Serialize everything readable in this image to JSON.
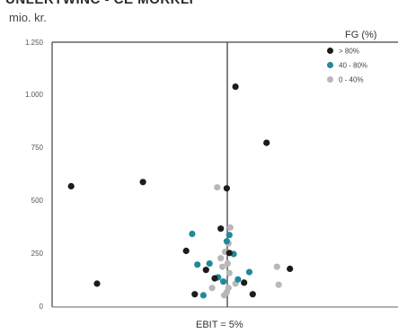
{
  "header": {
    "title_fragment": "UNLERTWINC - CE MORKLI",
    "y_unit": "mio. kr."
  },
  "legend": {
    "title": "FG (%)",
    "items": [
      {
        "label": "> 80%",
        "color": "#1c1c1c"
      },
      {
        "label": "40 - 80%",
        "color": "#1f8a9a"
      },
      {
        "label": "0 - 40%",
        "color": "#b8b8b8"
      }
    ]
  },
  "chart_data": {
    "type": "scatter",
    "title": "",
    "xlabel": "EBIT = 5%",
    "ylabel": "mio. kr.",
    "ylim": [
      0,
      1250
    ],
    "yticks": [
      {
        "value": 0,
        "label": "0"
      },
      {
        "value": 250,
        "label": "250"
      },
      {
        "value": 500,
        "label": "500"
      },
      {
        "value": 750,
        "label": "750"
      },
      {
        "value": 1000,
        "label": "1.000"
      },
      {
        "value": 1250,
        "label": "1.250"
      }
    ],
    "xlim": [
      -20,
      20
    ],
    "x_reference": 5,
    "grid": false,
    "series": [
      {
        "name": "> 80%",
        "color": "#1c1c1c",
        "points": [
          [
            -17.8,
            570
          ],
          [
            -9.5,
            590
          ],
          [
            -14.8,
            110
          ],
          [
            -4.5,
            265
          ],
          [
            -0.5,
            370
          ],
          [
            0.2,
            560
          ],
          [
            1.2,
            1040
          ],
          [
            4.8,
            775
          ],
          [
            7.5,
            180
          ],
          [
            2.2,
            115
          ],
          [
            3.2,
            60
          ],
          [
            -2.2,
            175
          ],
          [
            -1.2,
            135
          ],
          [
            -3.5,
            60
          ],
          [
            0.5,
            255
          ]
        ]
      },
      {
        "name": "40 - 80%",
        "color": "#1f8a9a",
        "points": [
          [
            -3.8,
            345
          ],
          [
            -3.2,
            200
          ],
          [
            -2.5,
            55
          ],
          [
            -1.8,
            205
          ],
          [
            -0.8,
            140
          ],
          [
            0.5,
            340
          ],
          [
            0.2,
            310
          ],
          [
            1.0,
            250
          ],
          [
            2.8,
            165
          ],
          [
            -0.2,
            120
          ],
          [
            1.5,
            130
          ]
        ]
      },
      {
        "name": "0 - 40%",
        "color": "#b8b8b8",
        "points": [
          [
            -0.9,
            565
          ],
          [
            0.6,
            375
          ],
          [
            0.4,
            300
          ],
          [
            -0.5,
            230
          ],
          [
            0.3,
            205
          ],
          [
            -0.3,
            190
          ],
          [
            0.5,
            160
          ],
          [
            6.0,
            190
          ],
          [
            6.2,
            105
          ],
          [
            0.2,
            70
          ],
          [
            -0.1,
            55
          ],
          [
            0.4,
            90
          ],
          [
            -1.5,
            90
          ],
          [
            1.2,
            110
          ],
          [
            0.0,
            260
          ]
        ]
      }
    ]
  }
}
